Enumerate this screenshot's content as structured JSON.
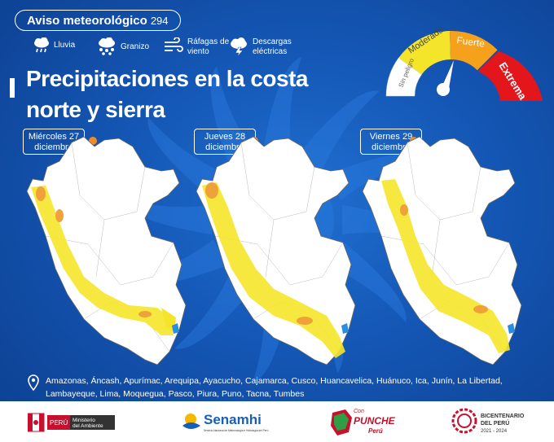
{
  "header": {
    "bulletin_label": "Aviso meteorológico",
    "bulletin_number": "294",
    "title_line1": "Precipitaciones en la costa",
    "title_line2": "norte y sierra"
  },
  "legend": [
    {
      "icon": "rain-cloud-icon",
      "line1": "Lluvia",
      "line2": ""
    },
    {
      "icon": "hail-cloud-icon",
      "line1": "Granizo",
      "line2": ""
    },
    {
      "icon": "wind-gust-icon",
      "line1": "Ráfagas de",
      "line2": "viento"
    },
    {
      "icon": "lightning-cloud-icon",
      "line1": "Descargas",
      "line2": "eléctricas"
    }
  ],
  "gauge": {
    "levels": [
      "Sin peligro",
      "Moderada",
      "Fuerte",
      "Extrema"
    ],
    "colors": [
      "#ffffff",
      "#f5e52a",
      "#f5a11c",
      "#e3161b"
    ]
  },
  "days": [
    {
      "line1": "Miércoles 27",
      "line2": "diciembre"
    },
    {
      "line1": "Jueves 28",
      "line2": "diciembre"
    },
    {
      "line1": "Viernes 29",
      "line2": "diciembre"
    }
  ],
  "colors": {
    "moderada": "#f5e52a",
    "fuerte": "#f0a23a",
    "lake": "#2a8de0",
    "accent": "#f08a24"
  },
  "regions": {
    "icon": "location-pin-icon",
    "text": "Amazonas, Áncash, Apurímac, Arequipa, Ayacucho, Cajamarca, Cusco, Huancavelica, Huánuco, Ica, Junín, La Libertad, Lambayeque, Lima, Moquegua, Pasco, Piura, Puno, Tacna, Tumbes"
  },
  "footer": {
    "peru_label": "PERÚ",
    "ministry_line1": "Ministerio",
    "ministry_line2": "del Ambiente",
    "senamhi_name": "Senamhi",
    "senamhi_sub": "Servicio Nacional de Meteorología e Hidrología del Perú",
    "campaign_line1": "Con",
    "campaign_line2": "PUNCHE",
    "campaign_line3": "Perú",
    "bicentenario_line1": "BICENTENARIO",
    "bicentenario_line2": "DEL PERÚ",
    "bicentenario_years": "2021 - 2024"
  }
}
